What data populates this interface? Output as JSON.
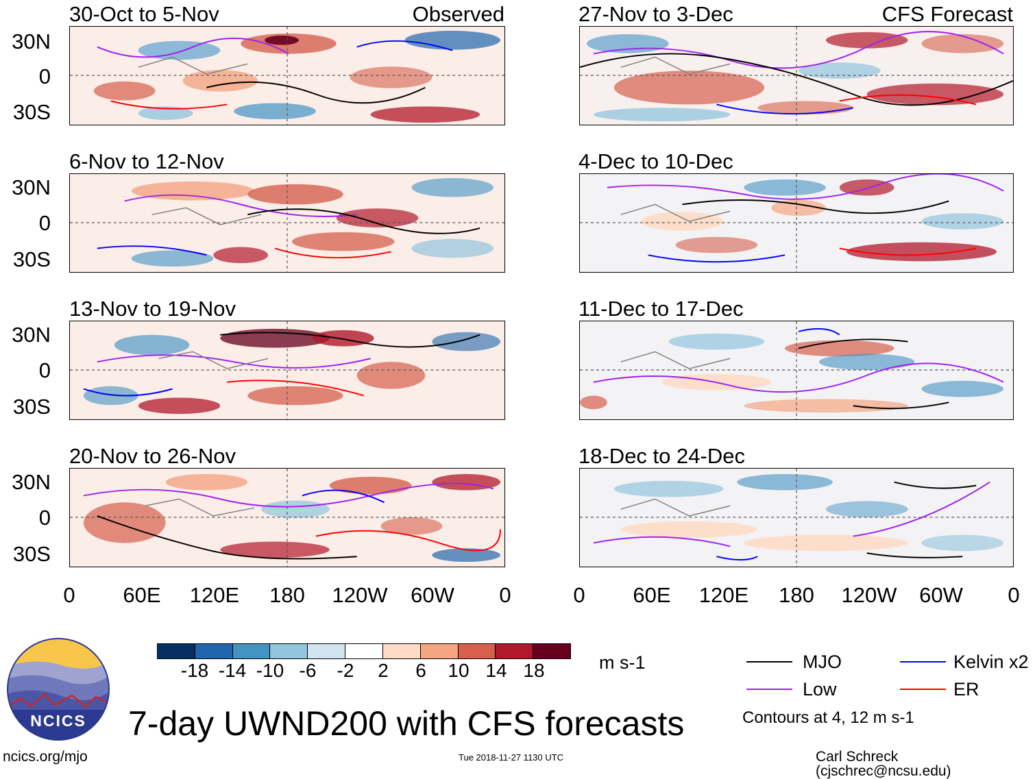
{
  "header": {
    "left_tag": "Observed",
    "right_tag": "CFS Forecast"
  },
  "panels": [
    {
      "title": "30-Oct to 5-Nov"
    },
    {
      "title": "6-Nov to 12-Nov"
    },
    {
      "title": "13-Nov to 19-Nov"
    },
    {
      "title": "20-Nov to 26-Nov"
    },
    {
      "title": "27-Nov to 3-Dec"
    },
    {
      "title": "4-Dec to 10-Dec"
    },
    {
      "title": "11-Dec to 17-Dec"
    },
    {
      "title": "18-Dec to 24-Dec"
    }
  ],
  "lat_labels": [
    "30N",
    "0",
    "30S"
  ],
  "lon_labels": [
    "0",
    "60E",
    "120E",
    "180",
    "120W",
    "60W",
    "0"
  ],
  "colorbar": {
    "ticks": [
      "-18",
      "-14",
      "-10",
      "-6",
      "-2",
      "2",
      "6",
      "10",
      "14",
      "18"
    ],
    "colors": [
      "#053061",
      "#2166ac",
      "#4393c3",
      "#92c5de",
      "#d1e5f0",
      "#ffffff",
      "#fddbc7",
      "#f4a582",
      "#d6604d",
      "#b2182b",
      "#67001f"
    ],
    "units": "m s-1"
  },
  "legend": {
    "items": [
      {
        "label": "MJO",
        "color": "#000000"
      },
      {
        "label": "Kelvin x2",
        "color": "#0000ff"
      },
      {
        "label": "Low",
        "color": "#a020f0"
      },
      {
        "label": "ER",
        "color": "#ff0000"
      }
    ],
    "note": "Contours at 4, 12 m s-1"
  },
  "logo": {
    "text": "NCICS"
  },
  "title": "7-day UWND200 with CFS forecasts",
  "footer": {
    "url": "ncics.org/mjo",
    "timestamp": "Tue 2018-11-27 1130 UTC",
    "credit": "Carl Schreck (cjschrec@ncsu.edu)"
  }
}
